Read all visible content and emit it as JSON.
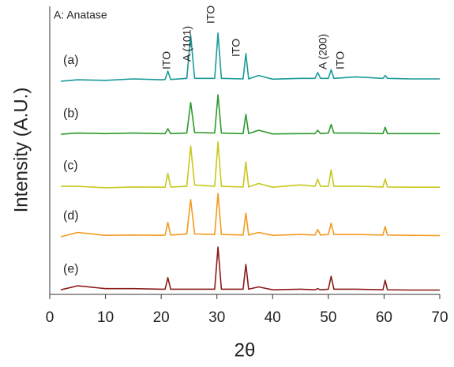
{
  "chart_data": {
    "type": "line",
    "xlabel": "2θ",
    "ylabel": "Intensity (A.U.)",
    "annotations": [
      "A: Anatase",
      "ITO",
      "A (101)",
      "ITO",
      "ITO",
      "A (200)",
      "ITO"
    ],
    "xlim": [
      0,
      70
    ],
    "xticks": [
      0,
      10,
      20,
      30,
      40,
      50,
      60,
      70
    ],
    "ylim": [
      0,
      100
    ],
    "x": [
      2,
      5,
      10,
      15,
      20,
      20.7,
      21.2,
      21.7,
      24.6,
      25.3,
      26,
      29.6,
      30.2,
      30.8,
      34.7,
      35.2,
      35.7,
      37.5,
      40,
      45,
      47.6,
      48.1,
      48.6,
      50,
      50.5,
      51,
      55,
      59.8,
      60.2,
      60.6,
      65,
      70
    ],
    "series": [
      {
        "name": "(a)",
        "color": "#1a9a9a",
        "values": [
          74,
          74.5,
          74.3,
          74.8,
          74.5,
          74.6,
          77.5,
          74.6,
          75,
          90,
          75,
          75,
          90.7,
          75,
          74.8,
          83.6,
          74.8,
          76,
          74.7,
          75,
          75,
          77,
          75,
          75,
          78,
          75,
          75.5,
          75,
          76,
          75,
          74.8,
          74.8
        ]
      },
      {
        "name": "(b)",
        "color": "#2e9a2e",
        "values": [
          55.6,
          56,
          55.8,
          56,
          55.8,
          55.8,
          57.5,
          55.8,
          56,
          66.6,
          56.2,
          56,
          69.3,
          56,
          55.8,
          62.5,
          55.8,
          57,
          55.7,
          55.8,
          55.8,
          57,
          55.8,
          56,
          59,
          56,
          56,
          55.8,
          58,
          55.8,
          55.8,
          55.8
        ]
      },
      {
        "name": "(c)",
        "color": "#c8c81e",
        "values": [
          37.5,
          37.5,
          37,
          37.3,
          37.2,
          37.2,
          42,
          37.3,
          37.5,
          51.5,
          38,
          37.5,
          52.9,
          37.5,
          37.3,
          46,
          37.3,
          38.5,
          37.2,
          38,
          37.5,
          40,
          37.5,
          37.5,
          43.3,
          37.5,
          37.6,
          37.3,
          40,
          37.3,
          37.2,
          37.2
        ]
      },
      {
        "name": "(d)",
        "color": "#f39a1e",
        "values": [
          20,
          21.5,
          20.5,
          20.6,
          20.5,
          20.6,
          25,
          20.6,
          21,
          32.9,
          21,
          20.8,
          35,
          20.8,
          20.6,
          28.2,
          20.6,
          21.5,
          20.5,
          20.8,
          20.6,
          22.5,
          20.6,
          20.8,
          24.7,
          20.8,
          20.8,
          20.6,
          23.6,
          20.6,
          20.5,
          20.4
        ]
      },
      {
        "name": "(e)",
        "color": "#8b1a1a",
        "values": [
          1.6,
          3,
          2,
          2,
          1.8,
          1.8,
          5.8,
          1.8,
          1.8,
          1.8,
          1.8,
          1.8,
          16.4,
          1.8,
          1.8,
          10.4,
          1.8,
          2.6,
          1.6,
          1.8,
          1.6,
          2,
          1.6,
          1.8,
          6.3,
          1.8,
          1.8,
          1.6,
          4.9,
          1.6,
          1.5,
          1.5
        ]
      }
    ]
  }
}
